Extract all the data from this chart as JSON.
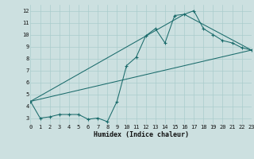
{
  "xlabel": "Humidex (Indice chaleur)",
  "bg_color": "#cce0e0",
  "grid_color": "#aacccc",
  "line_color": "#1a6b6b",
  "xlim": [
    0,
    23
  ],
  "ylim": [
    2.5,
    12.5
  ],
  "xticks": [
    0,
    1,
    2,
    3,
    4,
    5,
    6,
    7,
    8,
    9,
    10,
    11,
    12,
    13,
    14,
    15,
    16,
    17,
    18,
    19,
    20,
    21,
    22,
    23
  ],
  "yticks": [
    3,
    4,
    5,
    6,
    7,
    8,
    9,
    10,
    11,
    12
  ],
  "series1_x": [
    0,
    1,
    2,
    3,
    4,
    5,
    6,
    7,
    8,
    9,
    10,
    11,
    12,
    13,
    14,
    15,
    16,
    17,
    18,
    19,
    20,
    21,
    22,
    23
  ],
  "series1_y": [
    4.4,
    3.0,
    3.1,
    3.3,
    3.3,
    3.3,
    2.9,
    3.0,
    2.7,
    4.4,
    7.4,
    8.1,
    9.9,
    10.5,
    9.3,
    11.6,
    11.7,
    12.0,
    10.5,
    10.0,
    9.5,
    9.3,
    8.9,
    8.7
  ],
  "line2_x": [
    0,
    23
  ],
  "line2_y": [
    4.4,
    8.7
  ],
  "line3_x": [
    0,
    16,
    23
  ],
  "line3_y": [
    4.4,
    11.7,
    8.7
  ],
  "figsize": [
    3.2,
    2.0
  ],
  "dpi": 100,
  "tick_fontsize": 5,
  "xlabel_fontsize": 6
}
